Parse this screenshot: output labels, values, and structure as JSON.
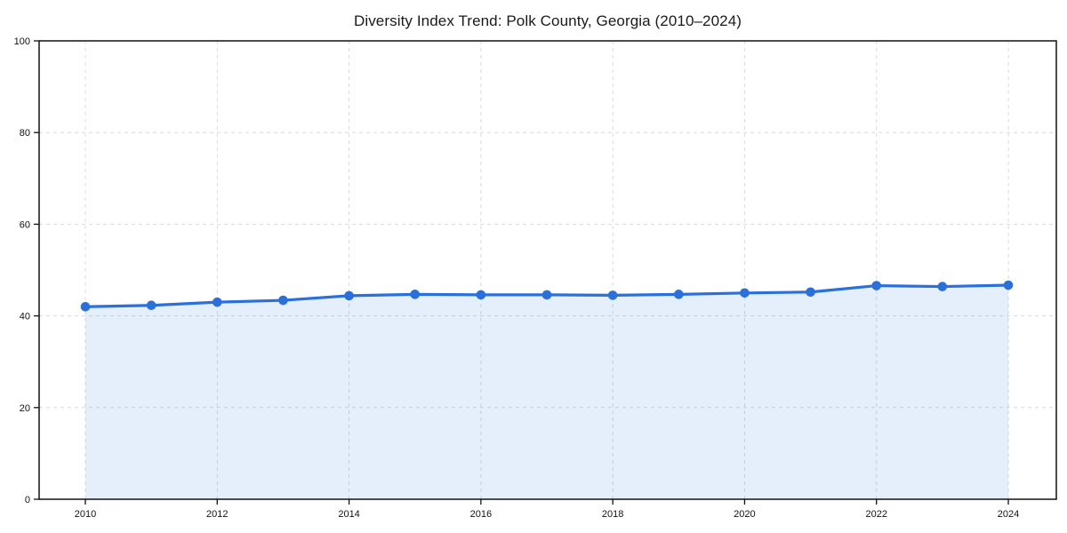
{
  "page": {
    "background": "#ffffff"
  },
  "chart_data": {
    "type": "area",
    "title": "Diversity Index Trend: Polk County, Georgia (2010–2024)",
    "x": [
      2010,
      2011,
      2012,
      2013,
      2014,
      2015,
      2016,
      2017,
      2018,
      2019,
      2020,
      2021,
      2022,
      2023,
      2024
    ],
    "series": [
      {
        "name": "Diversity Index",
        "values": [
          42.0,
          42.3,
          43.0,
          43.4,
          44.4,
          44.7,
          44.6,
          44.6,
          44.5,
          44.7,
          45.0,
          45.2,
          46.6,
          46.4,
          46.7
        ]
      }
    ],
    "xlabel": "",
    "ylabel": "",
    "ylim": [
      0,
      100
    ],
    "yticks": [
      0,
      20,
      40,
      60,
      80,
      100
    ],
    "xticks": [
      2010,
      2012,
      2014,
      2016,
      2018,
      2020,
      2022,
      2024
    ],
    "grid": true,
    "grid_style": "dashed",
    "legend": "none",
    "marker": "circle",
    "line_color": "#2a70dd",
    "fill_color": "#2a70dd",
    "fill_opacity": 0.12,
    "grid_color": "#dadada",
    "axis_color": "#111111",
    "title_color": "#1a1a1a"
  }
}
